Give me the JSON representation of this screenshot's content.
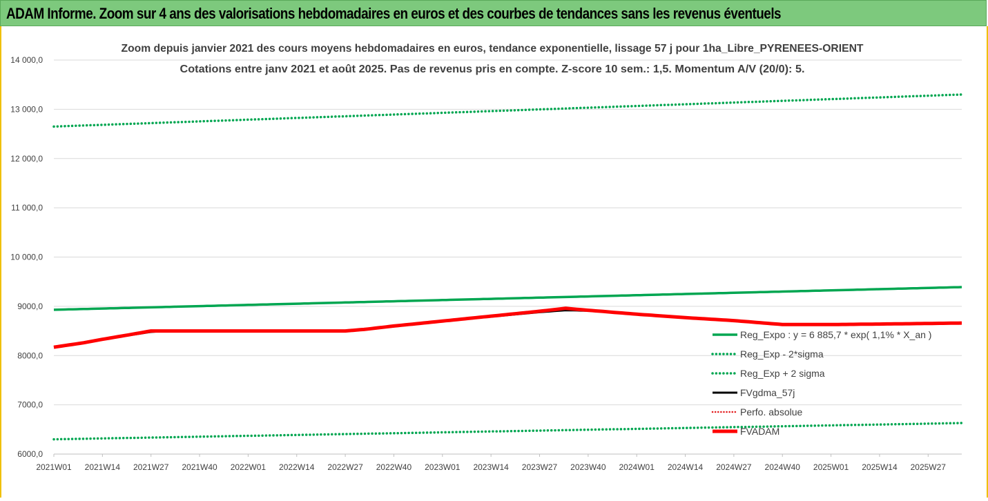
{
  "banner": {
    "title": "ADAM Informe. Zoom sur 4 ans des valorisations hebdomadaires en euros et des courbes de tendances sans les revenus éventuels"
  },
  "colors": {
    "banner_bg": "#7dc97d",
    "frame_border": "#f0c000",
    "reg_expo": "#00a651",
    "fvgdma": "#000000",
    "perfo": "#e31a1c",
    "fvadam": "#ff0000"
  },
  "chart_data": {
    "type": "line",
    "title_line1": "Zoom depuis janvier 2021 des cours moyens hebdomadaires en euros, tendance exponentielle, lissage 57 j pour 1ha_Libre_PYRENEES-ORIENT",
    "title_line2": "Cotations entre janv 2021 et août 2025.  Pas de revenus pris en compte. Z-score 10 sem.: 1,5. Momentum A/V (20/0): 5.",
    "xlabel": "",
    "ylabel": "",
    "ylim": [
      6000,
      14000
    ],
    "y_ticks": [
      "6000,0",
      "7000,0",
      "8000,0",
      "9000,0",
      "10 000,0",
      "11 000,0",
      "12 000,0",
      "13 000,0",
      "14 000,0"
    ],
    "y_tick_values": [
      6000,
      7000,
      8000,
      9000,
      10000,
      11000,
      12000,
      13000,
      14000
    ],
    "x_ticks": [
      "2021W01",
      "2021W14",
      "2021W27",
      "2021W40",
      "2022W01",
      "2022W14",
      "2022W27",
      "2022W40",
      "2023W01",
      "2023W14",
      "2023W27",
      "2023W40",
      "2024W01",
      "2024W14",
      "2024W27",
      "2024W40",
      "2025W01",
      "2025W14",
      "2025W27"
    ],
    "grid": "horizontal",
    "legend_position": "right",
    "n_weeks": 244,
    "series": [
      {
        "name": "Reg_Expo : y = 6 885,7 * exp( 1,1% *  X_an )",
        "style": "solid",
        "points": [
          [
            0,
            8930
          ],
          [
            243,
            9390
          ]
        ]
      },
      {
        "name": "Reg_Exp - 2*sigma",
        "style": "dotted",
        "points": [
          [
            0,
            6300
          ],
          [
            243,
            6630
          ]
        ]
      },
      {
        "name": "Reg_Exp + 2 sigma",
        "style": "dotted",
        "points": [
          [
            0,
            12650
          ],
          [
            243,
            13300
          ]
        ]
      },
      {
        "name": "FVgdma_57j",
        "style": "solid-thin",
        "points": [
          [
            0,
            8170
          ],
          [
            13,
            8330
          ],
          [
            26,
            8480
          ],
          [
            30,
            8500
          ],
          [
            78,
            8500
          ],
          [
            85,
            8540
          ],
          [
            104,
            8700
          ],
          [
            130,
            8880
          ],
          [
            137,
            8920
          ],
          [
            143,
            8910
          ],
          [
            156,
            8840
          ],
          [
            182,
            8700
          ],
          [
            195,
            8640
          ],
          [
            208,
            8620
          ],
          [
            243,
            8660
          ]
        ]
      },
      {
        "name": "Perfo. absolue",
        "style": "dotted-red",
        "points": []
      },
      {
        "name": "FVADAM",
        "style": "thick",
        "points": [
          [
            0,
            8170
          ],
          [
            8,
            8260
          ],
          [
            13,
            8330
          ],
          [
            20,
            8420
          ],
          [
            26,
            8500
          ],
          [
            78,
            8500
          ],
          [
            83,
            8530
          ],
          [
            91,
            8600
          ],
          [
            104,
            8700
          ],
          [
            117,
            8800
          ],
          [
            130,
            8900
          ],
          [
            137,
            8960
          ],
          [
            143,
            8920
          ],
          [
            156,
            8840
          ],
          [
            169,
            8770
          ],
          [
            182,
            8710
          ],
          [
            195,
            8630
          ],
          [
            208,
            8630
          ],
          [
            221,
            8640
          ],
          [
            243,
            8660
          ]
        ]
      }
    ]
  }
}
